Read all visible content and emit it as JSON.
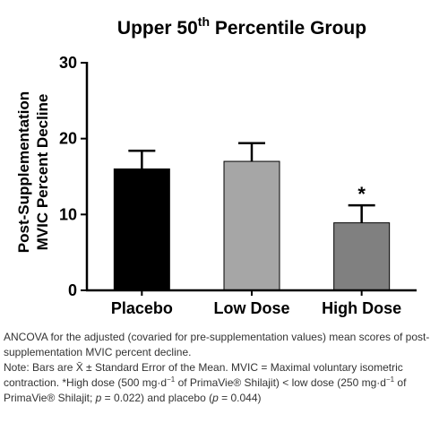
{
  "chart_data": {
    "type": "bar",
    "title": {
      "prefix": "Upper 50",
      "superscript": "th",
      "suffix": " Percentile Group"
    },
    "ylabel": [
      "Post-Supplementation",
      "MVIC Percent  Decline"
    ],
    "xlabel": "",
    "categories": [
      "Placebo",
      "Low Dose",
      "High Dose"
    ],
    "values": [
      16.0,
      17.0,
      8.9
    ],
    "errors": [
      2.4,
      2.4,
      2.3
    ],
    "annotations": [
      "",
      "",
      "*"
    ],
    "bar_colors": [
      "#000000",
      "#a6a6a6",
      "#808080"
    ],
    "ylim": [
      0,
      30
    ],
    "yticks": [
      0,
      10,
      20,
      30
    ],
    "yticklabels": [
      "0",
      "10",
      "20",
      "30"
    ],
    "grid": false,
    "legend": "none"
  },
  "caption": {
    "line1": "ANCOVA for the adjusted (covaried for pre-supplementation values) mean scores of post-supplementation MVIC percent decline.",
    "note_a": "Note: Bars are ",
    "xbar": "X̄",
    "note_b": " ± Standard Error of the Mean. MVIC = Maximal voluntary isometric contraction. *High dose (500 mg·d",
    "exp1": "−1",
    "note_c": " of PrimaVie® Shilajit) < low dose (250 mg·d",
    "exp2": "−1",
    "note_d": " of PrimaVie® Shilajit; ",
    "p1_var": "p",
    "p1_val": " = 0.022) and placebo (",
    "p2_var": "p",
    "p2_val": " = 0.044)"
  }
}
